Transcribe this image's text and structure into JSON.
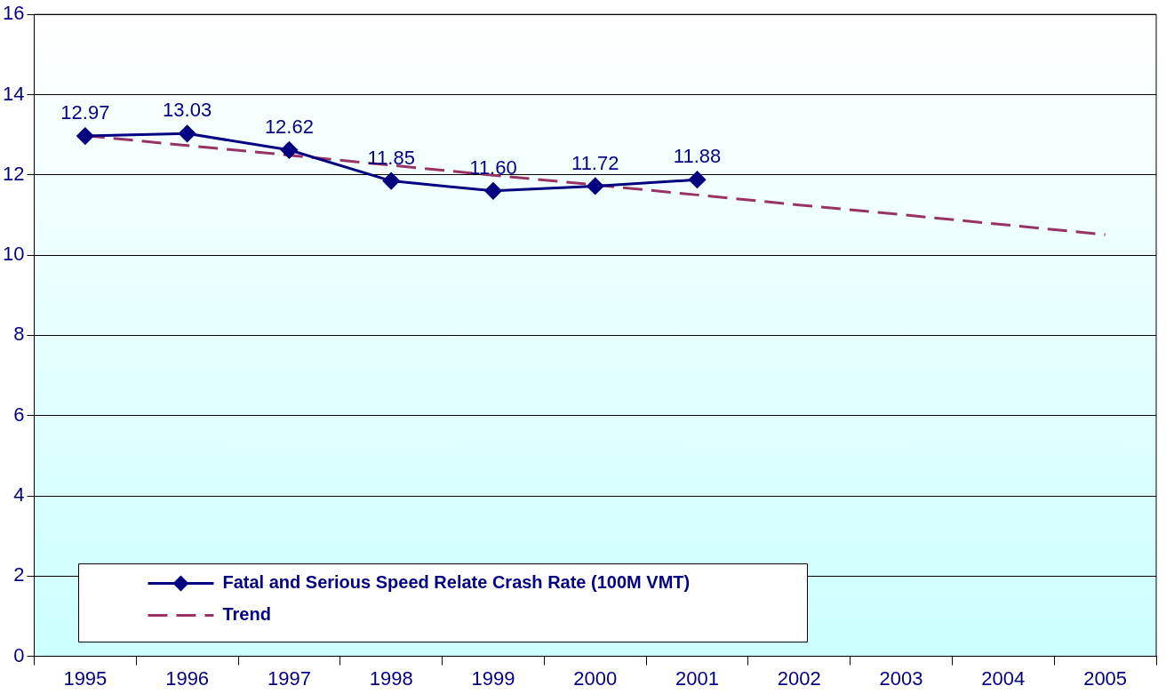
{
  "chart_data": {
    "type": "line",
    "categories": [
      "1995",
      "1996",
      "1997",
      "1998",
      "1999",
      "2000",
      "2001",
      "2002",
      "2003",
      "2004",
      "2005"
    ],
    "ylim": [
      0,
      16
    ],
    "yticks": [
      0,
      2,
      4,
      6,
      8,
      10,
      12,
      14,
      16
    ],
    "grid": "y",
    "legend": "bottom left",
    "series": [
      {
        "name": "Fatal and Serious Speed Relate Crash Rate (100M VMT)",
        "color": "#000080",
        "values": [
          12.97,
          13.03,
          12.62,
          11.85,
          11.6,
          11.72,
          11.88,
          null,
          null,
          null,
          null
        ],
        "marker": "diamond",
        "line_style": "solid",
        "value_labels": [
          "12.97",
          "13.03",
          "12.62",
          "11.85",
          "11.60",
          "11.72",
          "11.88",
          null,
          null,
          null,
          null
        ]
      },
      {
        "name": "Trend",
        "color": "#993366",
        "values": [
          12.98,
          12.73,
          12.49,
          12.24,
          11.99,
          11.75,
          11.5,
          11.25,
          11.01,
          10.76,
          10.51
        ],
        "marker": "none",
        "line_style": "dashed"
      }
    ]
  }
}
